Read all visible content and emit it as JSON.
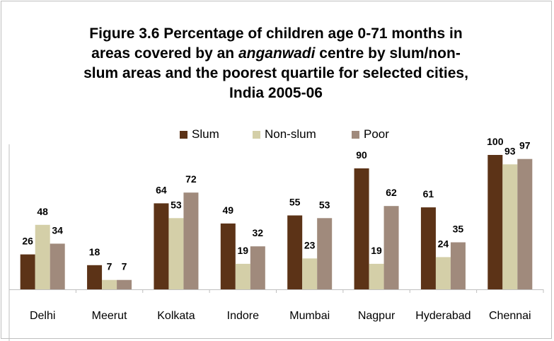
{
  "title_parts": {
    "line1": "Figure 3.6 Percentage of children age 0-71 months in",
    "line2_pre": "areas covered by an ",
    "line2_ital": "anganwadi",
    "line2_post": " centre by slum/non-",
    "line3": "slum areas and the poorest quartile for selected cities,",
    "line4": "India 2005-06"
  },
  "legend": [
    {
      "label": "Slum",
      "color": "#5c3317"
    },
    {
      "label": "Non-slum",
      "color": "#d4cfa8"
    },
    {
      "label": "Poor",
      "color": "#a08a7c"
    }
  ],
  "chart_data": {
    "type": "bar",
    "title": "Figure 3.6 Percentage of children age 0-71 months in areas covered by an anganwadi centre by slum/non-slum areas and the poorest quartile for selected cities, India 2005-06",
    "categories": [
      "Delhi",
      "Meerut",
      "Kolkata",
      "Indore",
      "Mumbai",
      "Nagpur",
      "Hyderabad",
      "Chennai"
    ],
    "series": [
      {
        "name": "Slum",
        "color": "#5c3317",
        "values": [
          26,
          18,
          64,
          49,
          55,
          90,
          61,
          100
        ]
      },
      {
        "name": "Non-slum",
        "color": "#d4cfa8",
        "values": [
          48,
          7,
          53,
          19,
          23,
          19,
          24,
          93
        ]
      },
      {
        "name": "Poor",
        "color": "#a08a7c",
        "values": [
          34,
          7,
          72,
          32,
          53,
          62,
          35,
          97
        ]
      }
    ],
    "ylim": [
      0,
      100
    ],
    "grid": false,
    "legend_position": "top",
    "data_labels": true
  }
}
